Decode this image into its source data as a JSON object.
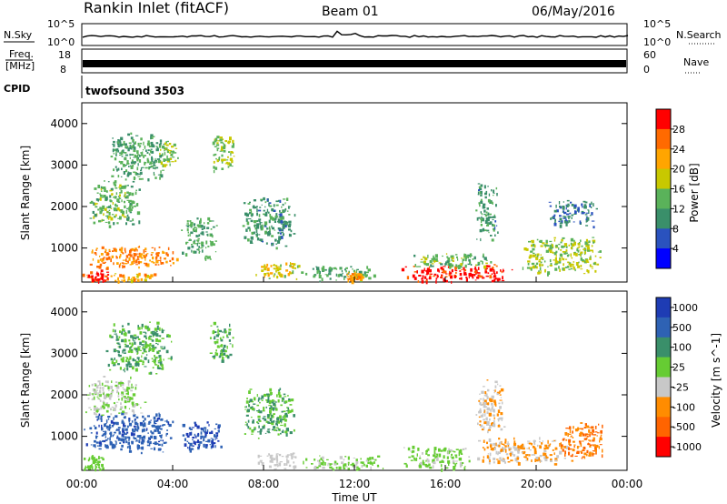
{
  "header": {
    "station": "Rankin Inlet (fitACF)",
    "beam": "Beam 01",
    "date": "06/May/2016"
  },
  "top_panels": {
    "nsky": {
      "label": "N.Sky",
      "tick_top": "10^5",
      "tick_bottom": "10^0"
    },
    "nsearch": {
      "label": "N.Search",
      "tick_top": "10^5",
      "tick_bottom": "10^0"
    },
    "freq": {
      "label_line1": "Freq.",
      "label_line2": "[MHz]",
      "tick_top": "18",
      "tick_bottom": "8"
    },
    "nave": {
      "label": "Nave",
      "tick_top": "60",
      "tick_bottom": "0"
    },
    "cpid": {
      "label": "CPID",
      "program": "twofsound 3503"
    }
  },
  "colors": {
    "power_scale": [
      "#0000ff",
      "#2a52be",
      "#3a8f6a",
      "#5ab25a",
      "#c8c800",
      "#ffa500",
      "#ff6a00",
      "#ff0000"
    ],
    "velocity_scale": [
      "#1e3cb4",
      "#2e62b4",
      "#3a8f6a",
      "#66cc33",
      "#c8c8c8",
      "#ff8c00",
      "#ff6400",
      "#ff0000"
    ]
  },
  "chart_data": [
    {
      "type": "heatmap",
      "title": "",
      "ylabel": "Slant Range [km]",
      "xlabel": "Time UT",
      "yticks": [
        "1000",
        "2000",
        "3000",
        "4000"
      ],
      "ylim": [
        180,
        4500
      ],
      "xlim": [
        "00:00",
        "24:00"
      ],
      "colorbar": {
        "label": "Power [dB]",
        "ticks": [
          "4",
          "8",
          "12",
          "16",
          "20",
          "24",
          "28"
        ],
        "range": [
          0,
          30
        ]
      },
      "blobs": [
        {
          "t0": 0.0,
          "t1": 4.2,
          "r0": 500,
          "r1": 1100,
          "v": 23
        },
        {
          "t0": 0.0,
          "t1": 1.2,
          "r0": 180,
          "r1": 500,
          "v": 27
        },
        {
          "t0": 1.2,
          "t1": 3.5,
          "r0": 180,
          "r1": 420,
          "v": 20
        },
        {
          "t0": 0.2,
          "t1": 2.6,
          "r0": 1500,
          "r1": 2700,
          "v": 13
        },
        {
          "t0": 1.0,
          "t1": 3.8,
          "r0": 2600,
          "r1": 3800,
          "v": 11
        },
        {
          "t0": 3.3,
          "t1": 4.3,
          "r0": 3000,
          "r1": 3600,
          "v": 14
        },
        {
          "t0": 5.6,
          "t1": 6.7,
          "r0": 2800,
          "r1": 3800,
          "v": 15
        },
        {
          "t0": 4.3,
          "t1": 6.0,
          "r0": 700,
          "r1": 1800,
          "v": 12
        },
        {
          "t0": 7.0,
          "t1": 9.4,
          "r0": 1000,
          "r1": 2300,
          "v": 10
        },
        {
          "t0": 7.6,
          "t1": 9.6,
          "r0": 250,
          "r1": 700,
          "v": 17
        },
        {
          "t0": 9.5,
          "t1": 13.0,
          "r0": 200,
          "r1": 600,
          "v": 12
        },
        {
          "t0": 11.6,
          "t1": 12.4,
          "r0": 200,
          "r1": 450,
          "v": 22
        },
        {
          "t0": 13.9,
          "t1": 19.2,
          "r0": 180,
          "r1": 650,
          "v": 28
        },
        {
          "t0": 14.5,
          "t1": 18.5,
          "r0": 500,
          "r1": 900,
          "v": 13
        },
        {
          "t0": 17.3,
          "t1": 18.3,
          "r0": 1200,
          "r1": 2600,
          "v": 10
        },
        {
          "t0": 19.3,
          "t1": 23.0,
          "r0": 350,
          "r1": 1300,
          "v": 15
        },
        {
          "t0": 20.5,
          "t1": 22.8,
          "r0": 1500,
          "r1": 2200,
          "v": 8
        }
      ]
    },
    {
      "type": "heatmap",
      "title": "",
      "ylabel": "Slant Range [km]",
      "xlabel": "Time UT",
      "yticks": [
        "1000",
        "2000",
        "3000",
        "4000"
      ],
      "ylim": [
        180,
        4500
      ],
      "xlim": [
        "00:00",
        "24:00"
      ],
      "xticks": [
        "00:00",
        "04:00",
        "08:00",
        "12:00",
        "16:00",
        "20:00",
        "00:00"
      ],
      "colorbar": {
        "label": "Velocity [m s^-1]",
        "ticks": [
          "1000",
          "500",
          "100",
          "25",
          "-25",
          "-100",
          "-500",
          "-1000"
        ],
        "range": [
          -1200,
          1200
        ]
      },
      "blobs": [
        {
          "t0": 0.0,
          "t1": 4.3,
          "r0": 600,
          "r1": 1600,
          "v": 800
        },
        {
          "t0": 0.0,
          "t1": 2.8,
          "r0": 1500,
          "r1": 2500,
          "v": 10
        },
        {
          "t0": 0.0,
          "t1": 1.0,
          "r0": 180,
          "r1": 600,
          "v": 150
        },
        {
          "t0": 1.0,
          "t1": 4.0,
          "r0": 2500,
          "r1": 3800,
          "v": 300
        },
        {
          "t0": 5.6,
          "t1": 6.7,
          "r0": 2800,
          "r1": 3800,
          "v": 300
        },
        {
          "t0": 4.3,
          "t1": 6.2,
          "r0": 600,
          "r1": 1400,
          "v": 900
        },
        {
          "t0": 7.0,
          "t1": 9.4,
          "r0": 900,
          "r1": 2200,
          "v": 300
        },
        {
          "t0": 7.6,
          "t1": 9.6,
          "r0": 200,
          "r1": 650,
          "v": -150
        },
        {
          "t0": 9.5,
          "t1": 13.5,
          "r0": 200,
          "r1": 550,
          "v": 60
        },
        {
          "t0": 14.0,
          "t1": 17.2,
          "r0": 180,
          "r1": 800,
          "v": 70
        },
        {
          "t0": 17.2,
          "t1": 21.5,
          "r0": 300,
          "r1": 1000,
          "v": -300
        },
        {
          "t0": 17.3,
          "t1": 18.6,
          "r0": 1000,
          "r1": 2400,
          "v": -250
        },
        {
          "t0": 21.0,
          "t1": 23.0,
          "r0": 350,
          "r1": 1400,
          "v": -600
        }
      ]
    }
  ]
}
